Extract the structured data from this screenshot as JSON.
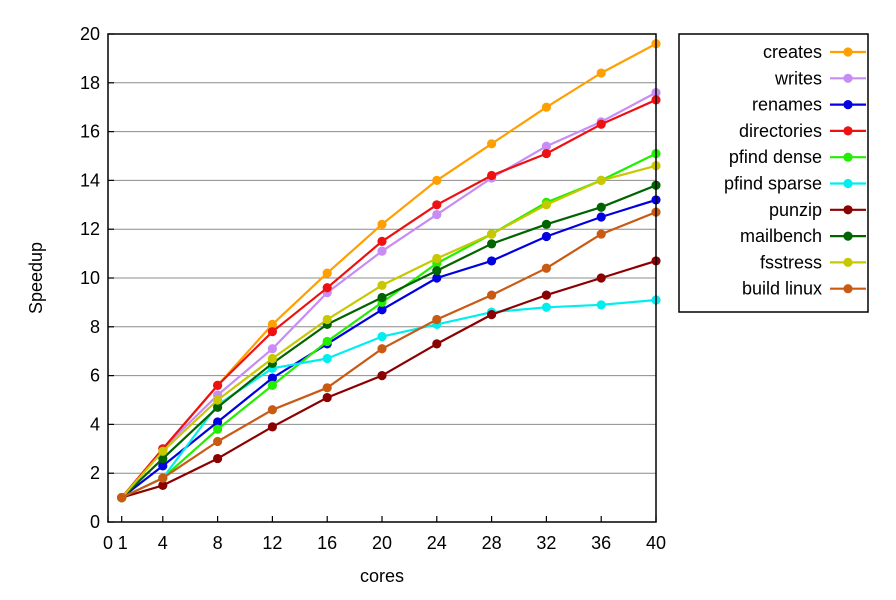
{
  "chart_data": {
    "type": "line",
    "title": "",
    "xlabel": "cores",
    "ylabel": "Speedup",
    "xlim": [
      0,
      40
    ],
    "ylim": [
      0,
      20
    ],
    "x_ticks": [
      0,
      1,
      4,
      8,
      12,
      16,
      20,
      24,
      28,
      32,
      36,
      40
    ],
    "y_ticks": [
      0,
      2,
      4,
      6,
      8,
      10,
      12,
      14,
      16,
      18,
      20
    ],
    "grid": "horizontal",
    "legend_position": "outside-right",
    "x": [
      1,
      4,
      8,
      12,
      16,
      20,
      24,
      28,
      32,
      36,
      40
    ],
    "series": [
      {
        "name": "creates",
        "color": "#ff9f00",
        "values": [
          1,
          3.0,
          5.6,
          8.1,
          10.2,
          12.2,
          14.0,
          15.5,
          17.0,
          18.4,
          19.6
        ]
      },
      {
        "name": "writes",
        "color": "#c88cf5",
        "values": [
          1,
          3.0,
          5.2,
          7.1,
          9.4,
          11.1,
          12.6,
          14.1,
          15.4,
          16.4,
          17.6
        ]
      },
      {
        "name": "renames",
        "color": "#0000e0",
        "values": [
          1,
          2.3,
          4.1,
          5.9,
          7.3,
          8.7,
          10.0,
          10.7,
          11.7,
          12.5,
          13.2
        ]
      },
      {
        "name": "directories",
        "color": "#ee1111",
        "values": [
          1,
          3.0,
          5.6,
          7.8,
          9.6,
          11.5,
          13.0,
          14.2,
          15.1,
          16.3,
          17.3
        ]
      },
      {
        "name": "pfind dense",
        "color": "#22ee00",
        "values": [
          1,
          1.8,
          3.8,
          5.6,
          7.4,
          9.0,
          10.6,
          11.8,
          13.1,
          14.0,
          15.1
        ]
      },
      {
        "name": "pfind sparse",
        "color": "#00eeee",
        "values": [
          1,
          1.8,
          4.8,
          6.3,
          6.7,
          7.6,
          8.1,
          8.6,
          8.8,
          8.9,
          9.1
        ]
      },
      {
        "name": "punzip",
        "color": "#8b0000",
        "values": [
          1,
          1.5,
          2.6,
          3.9,
          5.1,
          6.0,
          7.3,
          8.5,
          9.3,
          10.0,
          10.7
        ]
      },
      {
        "name": "mailbench",
        "color": "#006400",
        "values": [
          1,
          2.6,
          4.7,
          6.5,
          8.1,
          9.2,
          10.3,
          11.4,
          12.2,
          12.9,
          13.8
        ]
      },
      {
        "name": "fsstress",
        "color": "#c8c800",
        "values": [
          1,
          2.9,
          5.0,
          6.7,
          8.3,
          9.7,
          10.8,
          11.8,
          13.0,
          14.0,
          14.6
        ]
      },
      {
        "name": "build linux",
        "color": "#c85a14",
        "values": [
          1,
          1.8,
          3.3,
          4.6,
          5.5,
          7.1,
          8.3,
          9.3,
          10.4,
          11.8,
          12.7
        ]
      }
    ]
  }
}
